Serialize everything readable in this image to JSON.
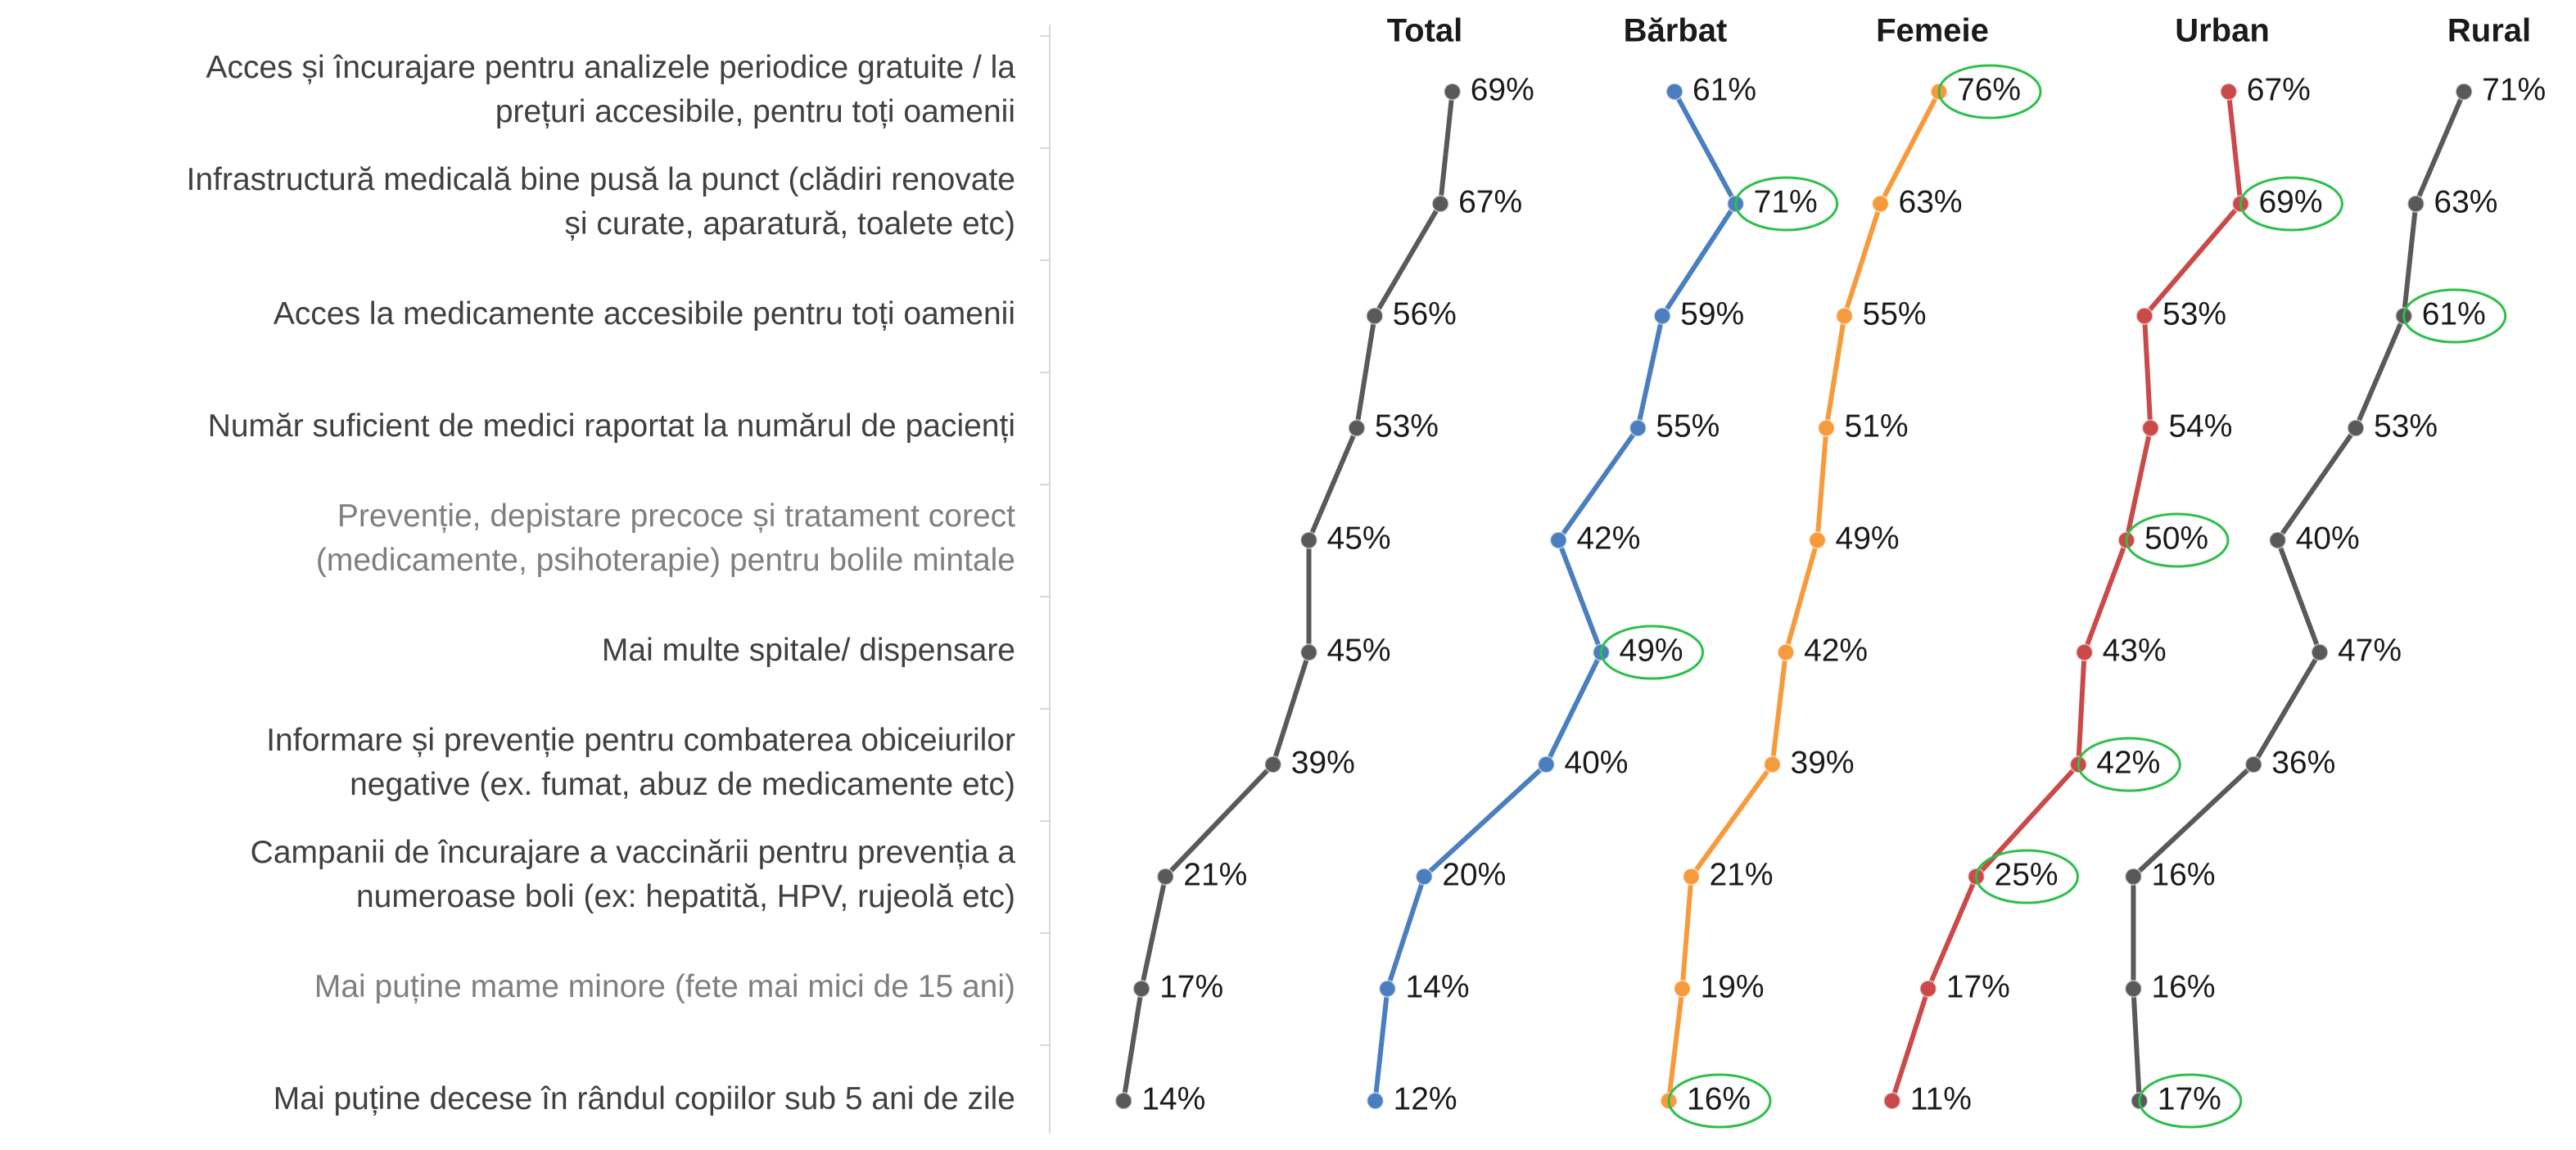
{
  "chart_data": {
    "type": "line",
    "categories": [
      [
        "Acces și încurajare pentru analizele periodice gratuite / la",
        "prețuri accesibile, pentru toți oamenii"
      ],
      [
        "Infrastructură medicală bine pusă la punct (clădiri renovate",
        "și curate, aparatură, toalete etc)"
      ],
      [
        "Acces la medicamente accesibile pentru toți oamenii"
      ],
      [
        "Număr suficient de medici raportat la numărul de pacienți"
      ],
      [
        "Prevenție, depistare precoce și tratament corect",
        "(medicamente, psihoterapie) pentru bolile mintale"
      ],
      [
        "Mai multe spitale/ dispensare"
      ],
      [
        "Informare și prevenție pentru combaterea obiceiurilor",
        "negative (ex. fumat, abuz de medicamente etc)"
      ],
      [
        "Campanii de încurajare a vaccinării pentru prevenția a",
        "numeroase boli (ex: hepatită, HPV, rujeolă etc)"
      ],
      [
        "Mai puține mame minore (fete mai mici de 15 ani)"
      ],
      [
        "Mai puține decese în rândul copiilor sub 5 ani de zile"
      ]
    ],
    "muted_categories": [
      4,
      8
    ],
    "series": [
      {
        "name": "Total",
        "color": "#595959",
        "values": [
          69,
          67,
          56,
          53,
          45,
          45,
          39,
          21,
          17,
          14
        ],
        "value_labels": [
          "69%",
          "67%",
          "56%",
          "53%",
          "45%",
          "45%",
          "39%",
          "21%",
          "17%",
          "14%"
        ],
        "circled": []
      },
      {
        "name": "Bărbat",
        "color": "#4a7ebf",
        "values": [
          61,
          71,
          59,
          55,
          42,
          49,
          40,
          20,
          14,
          12
        ],
        "value_labels": [
          "61%",
          "71%",
          "59%",
          "55%",
          "42%",
          "49%",
          "40%",
          "20%",
          "14%",
          "12%"
        ],
        "circled": [
          1,
          5
        ]
      },
      {
        "name": "Femeie",
        "color": "#f79a3c",
        "values": [
          76,
          63,
          55,
          51,
          49,
          42,
          39,
          21,
          19,
          16
        ],
        "value_labels": [
          "76%",
          "63%",
          "55%",
          "51%",
          "49%",
          "42%",
          "39%",
          "21%",
          "19%",
          "16%"
        ],
        "circled": [
          0,
          9
        ]
      },
      {
        "name": "Urban",
        "color": "#c94a48",
        "values": [
          67,
          69,
          53,
          54,
          50,
          43,
          42,
          25,
          17,
          11
        ],
        "value_labels": [
          "67%",
          "69%",
          "53%",
          "54%",
          "50%",
          "43%",
          "42%",
          "25%",
          "17%",
          "11%"
        ],
        "circled": [
          1,
          4,
          6,
          7
        ]
      },
      {
        "name": "Rural",
        "color": "#595959",
        "values": [
          71,
          63,
          61,
          53,
          40,
          47,
          36,
          16,
          16,
          17
        ],
        "value_labels": [
          "71%",
          "63%",
          "61%",
          "53%",
          "40%",
          "47%",
          "36%",
          "16%",
          "16%",
          "17%"
        ],
        "circled": [
          2,
          9
        ]
      }
    ]
  }
}
